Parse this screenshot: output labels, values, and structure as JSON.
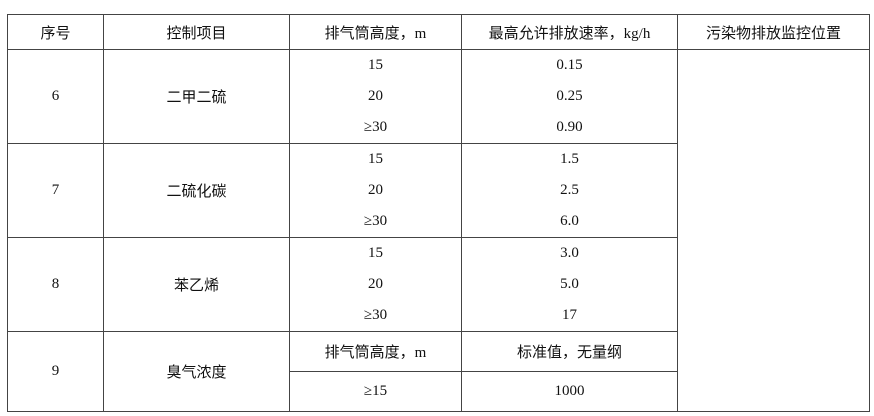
{
  "headers": [
    "序号",
    "控制项目",
    "排气筒高度，m",
    "最高允许排放速率，kg/h",
    "污染物排放监控位置"
  ],
  "groups": [
    {
      "no": "6",
      "item": "二甲二硫",
      "rows": [
        [
          "15",
          "0.15"
        ],
        [
          "20",
          "0.25"
        ],
        [
          "≥30",
          "0.90"
        ]
      ]
    },
    {
      "no": "7",
      "item": "二硫化碳",
      "rows": [
        [
          "15",
          "1.5"
        ],
        [
          "20",
          "2.5"
        ],
        [
          "≥30",
          "6.0"
        ]
      ]
    },
    {
      "no": "8",
      "item": "苯乙烯",
      "rows": [
        [
          "15",
          "3.0"
        ],
        [
          "20",
          "5.0"
        ],
        [
          "≥30",
          "17"
        ]
      ]
    }
  ],
  "odor": {
    "no": "9",
    "item": "臭气浓度",
    "sub_header_height": "排气筒高度，m",
    "sub_header_value": "标准值，无量纲",
    "height": "≥15",
    "value": "1000"
  },
  "monitor_location": ""
}
